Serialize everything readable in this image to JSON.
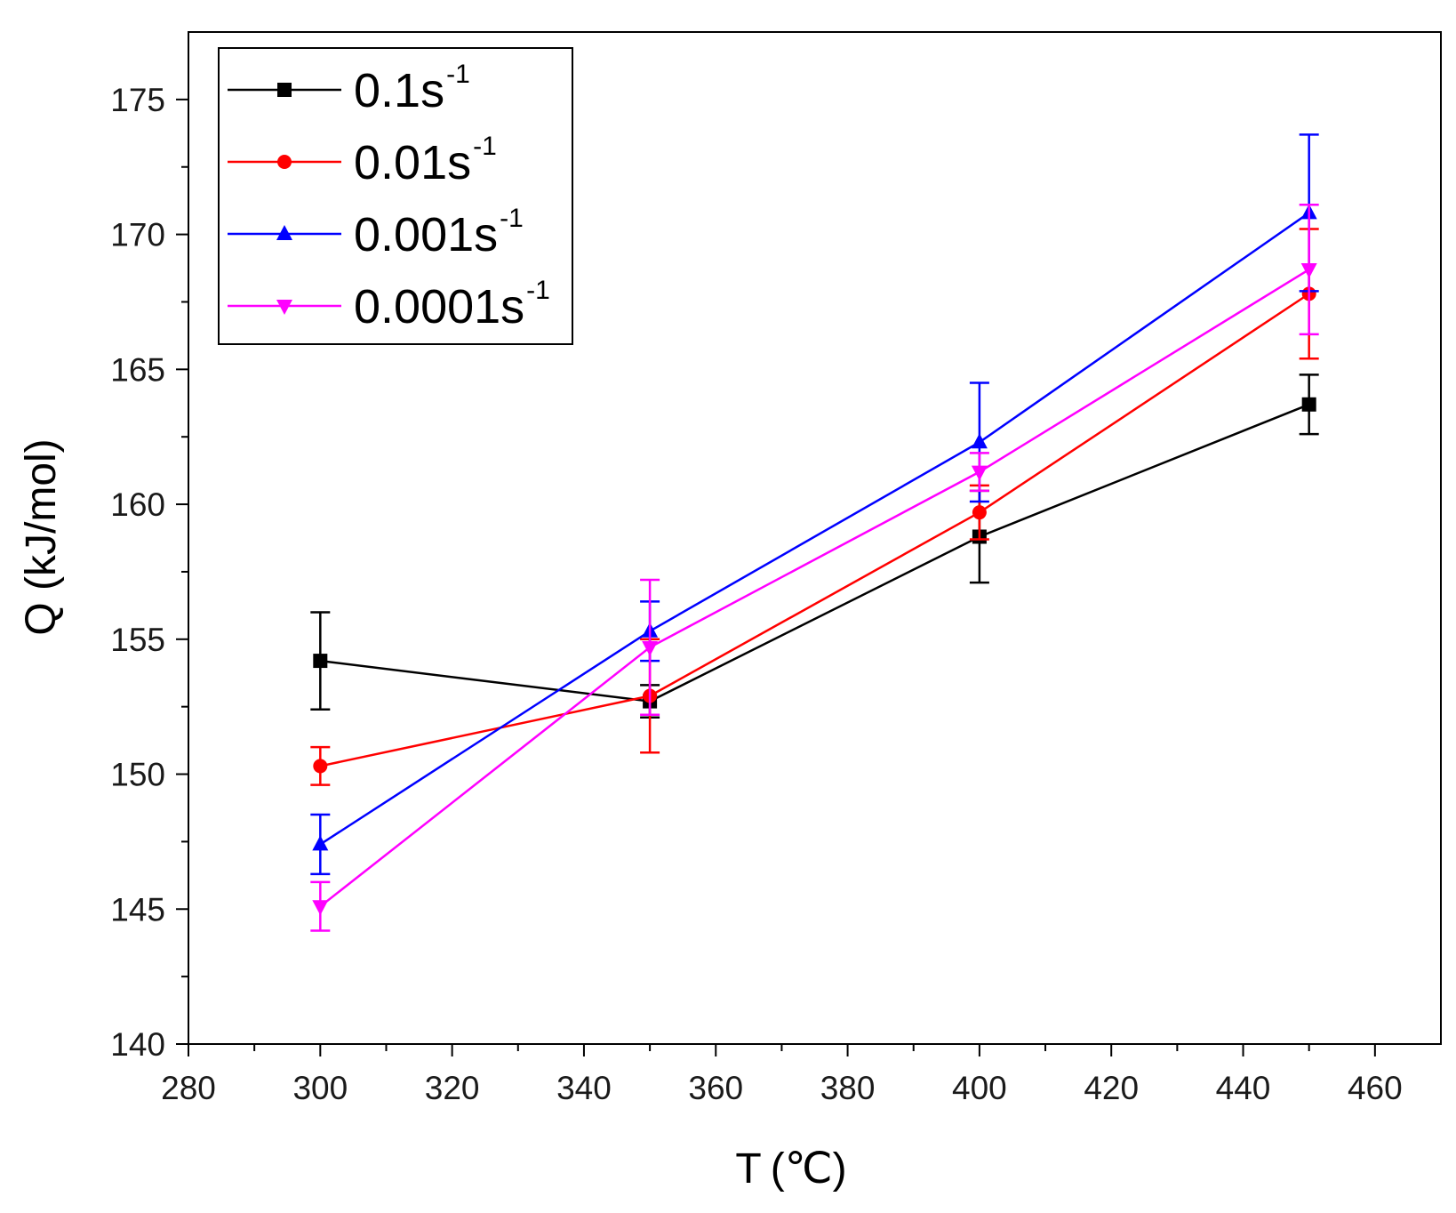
{
  "chart_data": {
    "type": "line",
    "title": "",
    "xlabel": "T",
    "xlabel_unit": "(℃)",
    "ylabel": "Q (kJ/mol)",
    "xlim": [
      280,
      470
    ],
    "ylim": [
      140,
      177.5
    ],
    "x_ticks": [
      280,
      300,
      320,
      340,
      360,
      380,
      400,
      420,
      440,
      460
    ],
    "y_ticks": [
      140,
      145,
      150,
      155,
      160,
      165,
      170,
      175
    ],
    "x_tick_labels": [
      "280",
      "300",
      "320",
      "340",
      "360",
      "380",
      "400",
      "420",
      "440",
      "460"
    ],
    "y_tick_labels": [
      "140",
      "145",
      "150",
      "155",
      "160",
      "165",
      "170",
      "175"
    ],
    "grid": false,
    "legend_position": "top-left",
    "x": [
      300,
      350,
      400,
      450
    ],
    "series": [
      {
        "name": "0.1s",
        "sup": "-1",
        "color": "#000000",
        "marker": "square",
        "values": [
          154.2,
          152.7,
          158.8,
          163.7
        ],
        "errors": [
          1.8,
          0.6,
          1.7,
          1.1
        ]
      },
      {
        "name": "0.01s",
        "sup": "-1",
        "color": "#ff0000",
        "marker": "circle",
        "values": [
          150.3,
          152.9,
          159.7,
          167.8
        ],
        "errors": [
          0.7,
          2.1,
          1.0,
          2.4
        ]
      },
      {
        "name": "0.001s",
        "sup": "-1",
        "color": "#0000ff",
        "marker": "triangle-up",
        "values": [
          147.4,
          155.3,
          162.3,
          170.8
        ],
        "errors": [
          1.1,
          1.1,
          2.2,
          2.9
        ]
      },
      {
        "name": "0.0001s",
        "sup": "-1",
        "color": "#ff00ff",
        "marker": "triangle-down",
        "values": [
          145.1,
          154.7,
          161.2,
          168.7
        ],
        "errors": [
          0.9,
          2.5,
          0.7,
          2.4
        ]
      }
    ]
  }
}
